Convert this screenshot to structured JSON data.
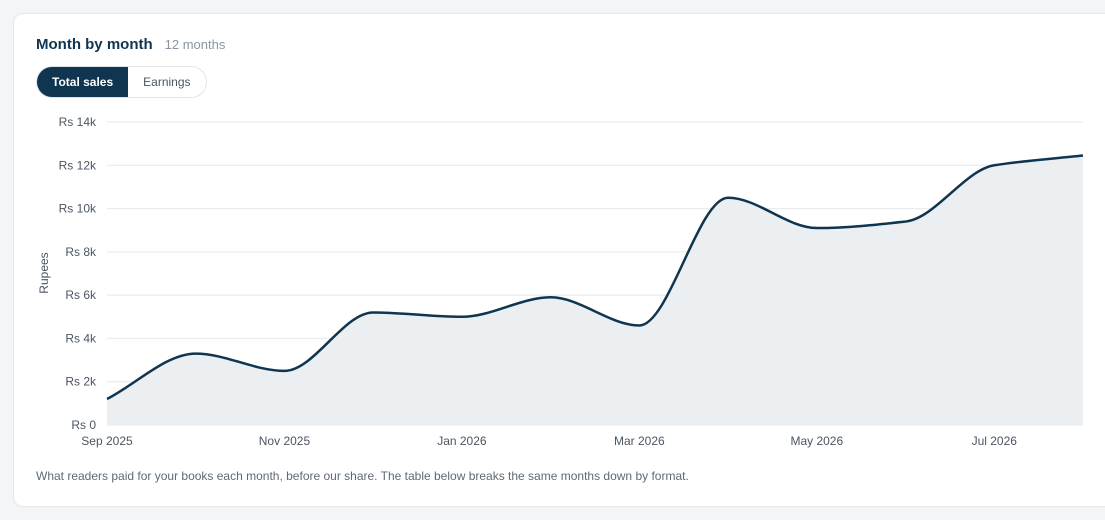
{
  "header": {
    "title": "Month by month",
    "subtitle": "12 months"
  },
  "tabs": [
    {
      "label": "Total sales",
      "active": true
    },
    {
      "label": "Earnings",
      "active": false
    }
  ],
  "caption": "What readers paid for your books each month, before our share. The table below breaks the same months down by format.",
  "colors": {
    "line": "#0f3550",
    "area": "#ebeff2",
    "grid": "#e5e9ed",
    "axis_text": "#4b5563"
  },
  "chart_data": {
    "type": "area",
    "ylabel": "Rupees",
    "ylim": [
      0,
      14000
    ],
    "y_ticks": [
      {
        "value": 0,
        "label": "Rs 0"
      },
      {
        "value": 2000,
        "label": "Rs 2k"
      },
      {
        "value": 4000,
        "label": "Rs 4k"
      },
      {
        "value": 6000,
        "label": "Rs 6k"
      },
      {
        "value": 8000,
        "label": "Rs 8k"
      },
      {
        "value": 10000,
        "label": "Rs 10k"
      },
      {
        "value": 12000,
        "label": "Rs 12k"
      },
      {
        "value": 14000,
        "label": "Rs 14k"
      }
    ],
    "x": [
      "2025-09",
      "2025-10",
      "2025-11",
      "2025-12",
      "2026-01",
      "2026-02",
      "2026-03",
      "2026-04",
      "2026-05",
      "2026-06",
      "2026-07",
      "2026-08"
    ],
    "x_ticks": [
      {
        "value": "2025-09",
        "label": "Sep 2025"
      },
      {
        "value": "2025-11",
        "label": "Nov 2025"
      },
      {
        "value": "2026-01",
        "label": "Jan 2026"
      },
      {
        "value": "2026-03",
        "label": "Mar 2026"
      },
      {
        "value": "2026-05",
        "label": "May 2026"
      },
      {
        "value": "2026-07",
        "label": "Jul 2026"
      }
    ],
    "series": [
      {
        "values": [
          1200,
          3300,
          2500,
          5200,
          5000,
          5900,
          4600,
          10500,
          9100,
          9400,
          12000,
          12450
        ]
      }
    ]
  }
}
